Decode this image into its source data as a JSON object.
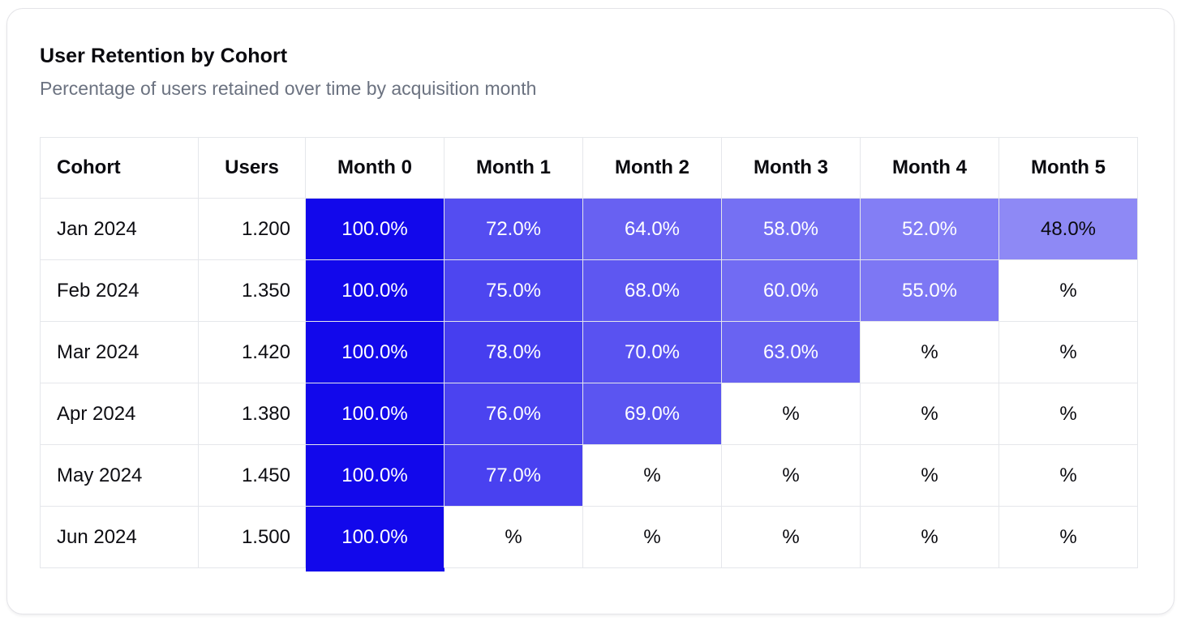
{
  "header": {
    "title": "User Retention by Cohort",
    "subtitle": "Percentage of users retained over time by acquisition month"
  },
  "chart_data": {
    "type": "heatmap",
    "title": "User Retention by Cohort",
    "subtitle": "Percentage of users retained over time by acquisition month",
    "columns": [
      "Cohort",
      "Users",
      "Month 0",
      "Month 1",
      "Month 2",
      "Month 3",
      "Month 4",
      "Month 5"
    ],
    "rows": [
      {
        "cohort": "Jan 2024",
        "users_display": "1.200",
        "users": 1200,
        "retention": [
          100.0,
          72.0,
          64.0,
          58.0,
          52.0,
          48.0
        ]
      },
      {
        "cohort": "Feb 2024",
        "users_display": "1.350",
        "users": 1350,
        "retention": [
          100.0,
          75.0,
          68.0,
          60.0,
          55.0,
          null
        ]
      },
      {
        "cohort": "Mar 2024",
        "users_display": "1.420",
        "users": 1420,
        "retention": [
          100.0,
          78.0,
          70.0,
          63.0,
          null,
          null
        ]
      },
      {
        "cohort": "Apr 2024",
        "users_display": "1.380",
        "users": 1380,
        "retention": [
          100.0,
          76.0,
          69.0,
          null,
          null,
          null
        ]
      },
      {
        "cohort": "May 2024",
        "users_display": "1.450",
        "users": 1450,
        "retention": [
          100.0,
          77.0,
          null,
          null,
          null,
          null
        ]
      },
      {
        "cohort": "Jun 2024",
        "users_display": "1.500",
        "users": 1500,
        "retention": [
          100.0,
          null,
          null,
          null,
          null,
          null
        ]
      }
    ],
    "value_suffix": "%",
    "empty_cell_display": "%",
    "value_decimals": 1,
    "layout": {
      "legend": "none",
      "grid_borders": true
    },
    "color_scale": {
      "base_rgb": "18, 8, 235",
      "base_hex": "#1208EB",
      "alpha_rule": "value / 100 over white",
      "text_white_threshold": 50,
      "text_light": "#FFFFFF",
      "text_dark": "#0A0A0F",
      "border": "#E5E7EB"
    }
  }
}
